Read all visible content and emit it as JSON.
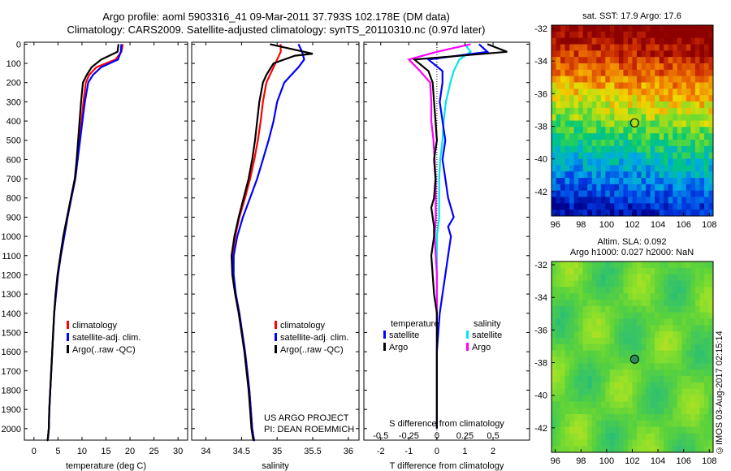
{
  "header": {
    "line1": "Argo profile: aoml 5903316_41 09-Mar-2011 37.793S 102.178E (DM data)",
    "line2": "Climatology: CARS2009. Satellite-adjusted climatology: synTS_20110310.nc (0.97d later)"
  },
  "colors": {
    "climatology": "#ff0000",
    "satellite": "#0000ff",
    "argo": "#000000",
    "sat_salinity": "#00e5ee",
    "argo_salinity": "#ff00ff"
  },
  "panels": {
    "temperature": {
      "xlabel": "temperature (deg C)",
      "xticks": [
        "0",
        "5",
        "10",
        "15",
        "20",
        "25",
        "30"
      ],
      "legend": [
        "climatology",
        "satellite-adj. clim.",
        "Argo(..raw -QC)"
      ]
    },
    "salinity": {
      "xlabel": "salinity",
      "xticks": [
        "34",
        "34.5",
        "35",
        "35.5",
        "36"
      ],
      "legend": [
        "climatology",
        "satellite-adj. clim.",
        "Argo(..raw -QC)"
      ],
      "credit1": "US ARGO PROJECT",
      "credit2": "PI: DEAN ROEMMICH"
    },
    "difference": {
      "xlabel": "T difference from climatology",
      "xticks": [
        "-2",
        "-1",
        "0",
        "1",
        "2"
      ],
      "xlabel_top": "S difference from climatology",
      "xticks_top": [
        "-0.5",
        "-0.25",
        "0",
        "0.25",
        "0.5"
      ],
      "legend_t_title": "temperature",
      "legend_s_title": "salinity",
      "legend_t": [
        "satellite",
        "Argo"
      ],
      "legend_s": [
        "satellite",
        "Argo"
      ]
    },
    "depth_ticks": [
      "0",
      "100",
      "200",
      "300",
      "400",
      "500",
      "600",
      "700",
      "800",
      "900",
      "1000",
      "1100",
      "1200",
      "1300",
      "1400",
      "1500",
      "1600",
      "1700",
      "1800",
      "1900",
      "2000"
    ]
  },
  "maps": {
    "sst": {
      "title": "sat. SST: 17.9 Argo: 17.6",
      "yticks": [
        "-32",
        "-34",
        "-36",
        "-38",
        "-40",
        "-42"
      ],
      "xticks": [
        "96",
        "98",
        "100",
        "102",
        "104",
        "106",
        "108"
      ]
    },
    "sla": {
      "title1": "Altim. SLA: 0.092",
      "title2": "Argo h1000: 0.027 h2000: NaN",
      "yticks": [
        "-32",
        "-34",
        "-36",
        "-38",
        "-40",
        "-42"
      ],
      "xticks": [
        "96",
        "98",
        "100",
        "102",
        "104",
        "106",
        "108"
      ]
    }
  },
  "footer_stamp": "©IMOS 03-Aug-2017 02:15:14",
  "chart_data": [
    {
      "type": "line",
      "title": "",
      "xlabel": "temperature (deg C)",
      "ylabel": "",
      "xlim": [
        -2,
        32
      ],
      "ylim": [
        2060,
        -10
      ],
      "series": [
        {
          "name": "climatology",
          "x": [
            18.5,
            18.2,
            17,
            13,
            11.5,
            10.8,
            10.3,
            9.9,
            9.5,
            9.1,
            8.6,
            7.8,
            7,
            6.3,
            5.6,
            5,
            4.6,
            4.2,
            4,
            3.8,
            3.6,
            3.4,
            3.2,
            3.1,
            2.9,
            2.8,
            2.7
          ],
          "y": [
            0,
            40,
            80,
            120,
            160,
            200,
            300,
            400,
            500,
            600,
            700,
            800,
            900,
            1000,
            1100,
            1200,
            1300,
            1400,
            1500,
            1600,
            1700,
            1800,
            1900,
            2000,
            2050,
            2060,
            2060
          ]
        },
        {
          "name": "satellite-adj. clim.",
          "x": [
            18.2,
            18.1,
            17.5,
            14,
            12.3,
            11.3,
            10.6,
            10.1,
            9.6,
            9.1,
            8.6,
            7.8,
            7,
            6.3,
            5.6,
            5,
            4.6,
            4.2,
            4,
            3.8,
            3.6,
            3.4,
            3.2,
            3.1,
            2.9,
            2.8,
            2.7
          ],
          "y": [
            0,
            40,
            80,
            120,
            160,
            200,
            300,
            400,
            500,
            600,
            700,
            800,
            900,
            1000,
            1100,
            1200,
            1300,
            1400,
            1500,
            1600,
            1700,
            1800,
            1900,
            2000,
            2050,
            2060,
            2060
          ]
        },
        {
          "name": "Argo(..raw -QC)",
          "x": [
            17.6,
            17.4,
            14,
            12,
            11,
            10.2,
            9.8,
            9.5,
            9.2,
            8.9,
            8.5,
            7.7,
            6.9,
            6.1,
            5.5,
            4.9,
            4.5,
            4.2,
            4,
            3.8,
            3.6,
            3.4,
            3.2,
            3.1,
            2.9,
            2.8,
            2.7
          ],
          "y": [
            0,
            40,
            80,
            120,
            160,
            200,
            300,
            400,
            500,
            600,
            700,
            800,
            900,
            1000,
            1100,
            1200,
            1300,
            1400,
            1500,
            1600,
            1700,
            1800,
            1900,
            2000,
            2050,
            2060,
            2060
          ]
        }
      ]
    },
    {
      "type": "line",
      "title": "",
      "xlabel": "salinity",
      "ylabel": "",
      "xlim": [
        33.8,
        36.15
      ],
      "ylim": [
        2060,
        -10
      ],
      "series": [
        {
          "name": "climatology",
          "x": [
            35.05,
            35.05,
            35.0,
            34.95,
            34.9,
            34.85,
            34.8,
            34.77,
            34.73,
            34.68,
            34.62,
            34.55,
            34.47,
            34.41,
            34.37,
            34.38,
            34.42,
            34.47,
            34.51,
            34.55,
            34.58,
            34.61,
            34.63,
            34.65,
            34.67,
            34.68,
            34.69
          ],
          "y": [
            0,
            40,
            80,
            120,
            160,
            200,
            300,
            400,
            500,
            600,
            700,
            800,
            900,
            1000,
            1100,
            1200,
            1300,
            1400,
            1500,
            1600,
            1700,
            1800,
            1900,
            2000,
            2050,
            2060,
            2060
          ]
        },
        {
          "name": "satellite-adj. clim.",
          "x": [
            35.3,
            35.35,
            35.38,
            35.3,
            35.2,
            35.1,
            35.0,
            34.95,
            34.88,
            34.8,
            34.72,
            34.62,
            34.52,
            34.44,
            34.39,
            34.39,
            34.42,
            34.47,
            34.51,
            34.55,
            34.58,
            34.61,
            34.63,
            34.65,
            34.67,
            34.68,
            34.69
          ],
          "y": [
            0,
            40,
            80,
            120,
            160,
            200,
            300,
            400,
            500,
            600,
            700,
            800,
            900,
            1000,
            1100,
            1200,
            1300,
            1400,
            1500,
            1600,
            1700,
            1800,
            1900,
            2000,
            2050,
            2060,
            2060
          ]
        },
        {
          "name": "Argo(..raw -QC)",
          "x": [
            34.9,
            35.5,
            35.25,
            34.95,
            34.85,
            34.8,
            34.75,
            34.72,
            34.69,
            34.65,
            34.6,
            34.53,
            34.46,
            34.4,
            34.36,
            34.37,
            34.41,
            34.46,
            34.5,
            34.54,
            34.57,
            34.6,
            34.62,
            34.64,
            34.66,
            34.67,
            34.68
          ],
          "y": [
            0,
            50,
            60,
            100,
            160,
            200,
            300,
            400,
            500,
            600,
            700,
            800,
            900,
            1000,
            1100,
            1200,
            1300,
            1400,
            1500,
            1600,
            1700,
            1800,
            1900,
            2000,
            2050,
            2060,
            2060
          ]
        }
      ]
    },
    {
      "type": "line",
      "title": "",
      "xlabel": "T difference from climatology",
      "ylabel": "",
      "xlim": [
        -2.6,
        3.3
      ],
      "ylim": [
        2060,
        -10
      ],
      "series": [
        {
          "name": "temperature satellite",
          "x": [
            1.5,
            1.8,
            -0.3,
            0.2,
            0.2,
            0.1,
            0.2,
            0.3,
            0.2,
            0.3,
            0.4,
            0.5,
            0.6,
            0.4,
            0.5,
            0.4,
            0.3,
            0.2,
            0.1,
            0.05,
            0.0,
            0.0,
            0.0,
            0.0,
            0.0
          ],
          "y": [
            0,
            40,
            80,
            140,
            200,
            300,
            400,
            500,
            600,
            700,
            800,
            850,
            900,
            950,
            1000,
            1100,
            1200,
            1300,
            1400,
            1500,
            1600,
            1700,
            1800,
            1900,
            2000
          ]
        },
        {
          "name": "temperature Argo",
          "x": [
            1.8,
            2.5,
            -0.8,
            -0.3,
            -0.15,
            -0.1,
            -0.05,
            0.0,
            -0.1,
            -0.05,
            -0.1,
            -0.2,
            -0.15,
            -0.1,
            -0.1,
            -0.2,
            -0.15,
            -0.1,
            0.0,
            0.0,
            0.0,
            0.0,
            0.0,
            0.0,
            0.0
          ],
          "y": [
            0,
            40,
            80,
            140,
            200,
            300,
            400,
            500,
            600,
            700,
            800,
            850,
            900,
            950,
            1000,
            1100,
            1200,
            1300,
            1400,
            1500,
            1600,
            1700,
            1800,
            1900,
            2000
          ]
        }
      ]
    },
    {
      "type": "line",
      "title": "",
      "xlabel": "S difference from climatology",
      "ylabel": "",
      "xlim": [
        -0.65,
        0.825
      ],
      "ylim": [
        2060,
        -10
      ],
      "series": [
        {
          "name": "salinity satellite",
          "x": [
            0.25,
            0.3,
            0.2,
            0.15,
            0.12,
            0.08,
            0.06,
            0.05,
            0.03,
            0.02,
            0.02,
            0.02,
            0.0,
            0.0,
            0.0,
            0.0,
            0.0,
            0.0,
            0.0,
            0.0,
            0.0
          ],
          "y": [
            0,
            40,
            80,
            140,
            200,
            300,
            400,
            500,
            600,
            700,
            800,
            900,
            1000,
            1100,
            1200,
            1300,
            1400,
            1500,
            1600,
            1800,
            2000
          ]
        },
        {
          "name": "salinity Argo",
          "x": [
            0.3,
            0.0,
            -0.25,
            -0.15,
            -0.06,
            -0.05,
            -0.05,
            -0.03,
            -0.02,
            -0.01,
            -0.01,
            -0.01,
            -0.02,
            -0.01,
            0.0,
            0.0,
            0.0,
            0.0,
            0.0,
            0.0,
            0.0
          ],
          "y": [
            0,
            40,
            80,
            140,
            200,
            300,
            400,
            500,
            600,
            700,
            800,
            900,
            1000,
            1100,
            1200,
            1300,
            1400,
            1500,
            1600,
            1800,
            2000
          ]
        }
      ]
    },
    {
      "type": "heatmap",
      "title": "sat. SST: 17.9 Argo: 17.6",
      "xlim": [
        95.7,
        108.3
      ],
      "ylim": [
        -43.5,
        -31.8
      ],
      "argo_position": [
        102.18,
        -37.79
      ]
    },
    {
      "type": "heatmap",
      "title": "Altim. SLA: 0.092",
      "xlim": [
        95.7,
        108.3
      ],
      "ylim": [
        -43.5,
        -31.8
      ],
      "argo_position": [
        102.18,
        -37.79
      ]
    }
  ]
}
